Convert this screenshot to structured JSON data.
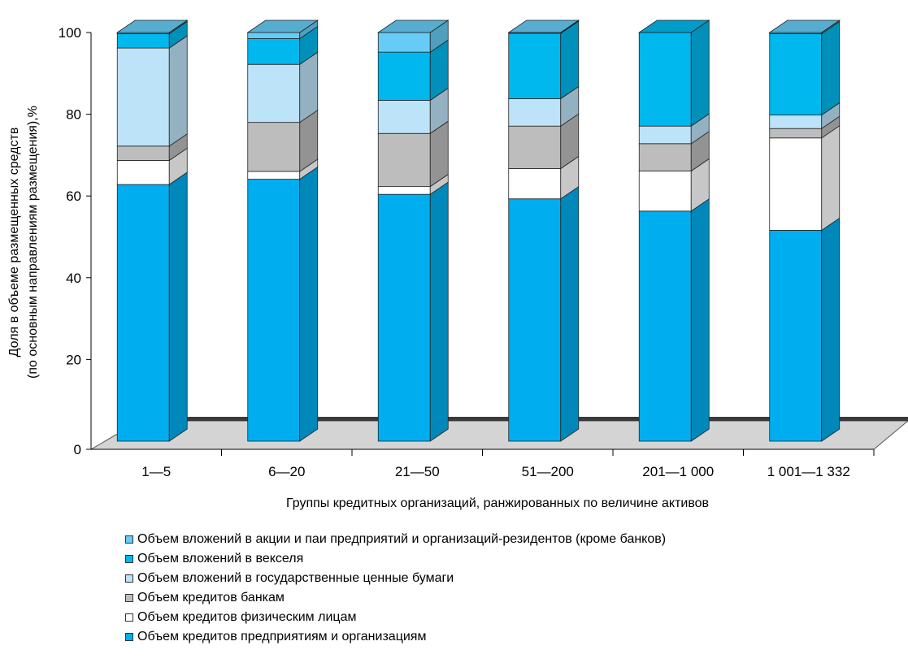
{
  "chart_data": {
    "type": "bar",
    "stacked": true,
    "three_d": true,
    "xlabel": "Группы кредитных организаций, ранжированных по величине активов",
    "ylabel": [
      "Доля в объеме размещенных средств",
      "(по основным направлениям размещения),%"
    ],
    "ylim": [
      0,
      100
    ],
    "yticks": [
      "0",
      "20",
      "40",
      "60",
      "80",
      "100"
    ],
    "grid": false,
    "legend_position": "bottom",
    "categories": [
      "1—5",
      "6—20",
      "21—50",
      "51—200",
      "201—1 000",
      "1 001—1 332"
    ],
    "series": [
      {
        "name": "Объем кредитов предприятиям и организациям",
        "color": "#00AEEF",
        "values": [
          62.8,
          64.1,
          60.4,
          59.3,
          56.3,
          51.6
        ]
      },
      {
        "name": "Объем кредитов физическим лицам",
        "color": "#FFFFFF",
        "values": [
          5.9,
          1.9,
          1.9,
          7.4,
          9.8,
          22.6
        ]
      },
      {
        "name": "Объем кредитов банкам",
        "color": "#BDBDBD",
        "values": [
          3.5,
          12.0,
          13.0,
          10.4,
          6.7,
          2.3
        ]
      },
      {
        "name": "Объем вложений в государственные ценные бумаги",
        "color": "#BCE3F7",
        "values": [
          24.0,
          14.2,
          8.1,
          6.7,
          4.3,
          3.3
        ]
      },
      {
        "name": "Объем вложений в векселя",
        "color": "#00B8EE",
        "values": [
          3.5,
          6.3,
          11.8,
          16.0,
          22.9,
          19.9
        ]
      },
      {
        "name": "Объем вложений в акции и паи предприятий и организаций-резидентов (кроме банков)",
        "color": "#66CCF5",
        "values": [
          0.3,
          1.5,
          4.8,
          0.2,
          0,
          0.3
        ]
      }
    ]
  },
  "legend_order": [
    5,
    4,
    3,
    2,
    1,
    0
  ]
}
